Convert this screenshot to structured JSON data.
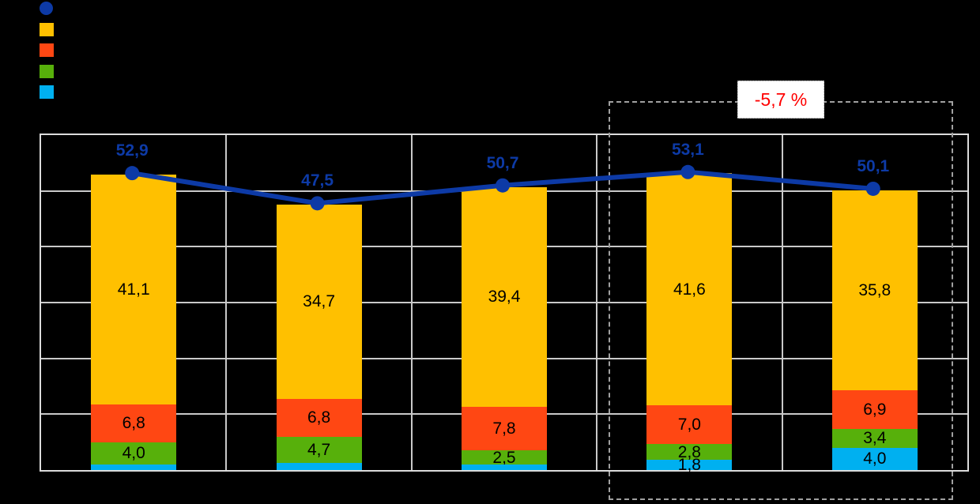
{
  "background_color": "#000000",
  "annotation": {
    "text": "-5,7 %",
    "color": "#FF0000"
  },
  "legend": {
    "position": "top-left",
    "items": [
      {
        "name": "total-line",
        "marker": "circle",
        "color": "#0D3AA6",
        "label": ""
      },
      {
        "name": "segment-yellow",
        "marker": "square",
        "color": "#FFC000",
        "label": ""
      },
      {
        "name": "segment-orange",
        "marker": "square",
        "color": "#FF4713",
        "label": ""
      },
      {
        "name": "segment-green",
        "marker": "square",
        "color": "#57B00B",
        "label": ""
      },
      {
        "name": "segment-cyan",
        "marker": "square",
        "color": "#00B0F0",
        "label": ""
      }
    ]
  },
  "chart_data": {
    "type": "bar",
    "subtype": "stacked-columns-with-total-line",
    "categories": [
      "",
      "",
      "",
      "",
      ""
    ],
    "series": [
      {
        "name": "segment-cyan",
        "color": "#00B0F0",
        "values": [
          1.0,
          1.3,
          1.0,
          1.8,
          4.0
        ],
        "labels": [
          "",
          "",
          "",
          "1,8",
          "4,0"
        ]
      },
      {
        "name": "segment-green",
        "color": "#57B00B",
        "values": [
          4.0,
          4.7,
          2.5,
          2.8,
          3.4
        ],
        "labels": [
          "4,0",
          "4,7",
          "2,5",
          "2,8",
          "3,4"
        ]
      },
      {
        "name": "segment-orange",
        "color": "#FF4713",
        "values": [
          6.8,
          6.8,
          7.8,
          7.0,
          6.9
        ],
        "labels": [
          "6,8",
          "6,8",
          "7,8",
          "7,0",
          "6,9"
        ]
      },
      {
        "name": "segment-yellow",
        "color": "#FFC000",
        "values": [
          41.1,
          34.7,
          39.4,
          41.6,
          35.8
        ],
        "labels": [
          "41,1",
          "34,7",
          "39,4",
          "41,6",
          "35,8"
        ]
      }
    ],
    "line": {
      "name": "total-line",
      "color": "#0D3AA6",
      "values": [
        52.9,
        47.5,
        50.7,
        53.1,
        50.1
      ],
      "labels": [
        "52,9",
        "47,5",
        "50,7",
        "53,1",
        "50,1"
      ]
    },
    "ylim": [
      0,
      60
    ],
    "grid_step": 10,
    "grid": true,
    "highlight_box_groups": [
      4,
      5
    ],
    "title": "",
    "xlabel": "",
    "ylabel": ""
  }
}
